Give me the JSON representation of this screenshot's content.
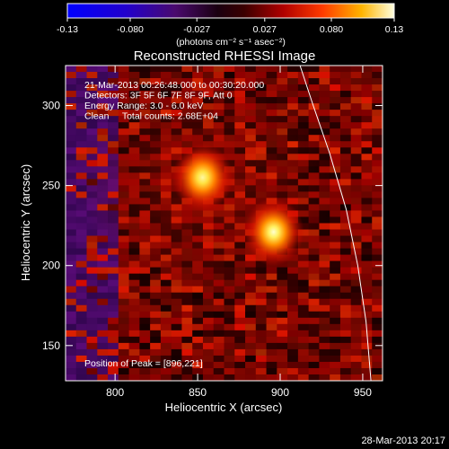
{
  "chart_data": {
    "type": "heatmap",
    "title": "Reconstructed RHESSI Image",
    "xlabel": "Heliocentric X (arcsec)",
    "ylabel": "Heliocentric Y (arcsec)",
    "xlim": [
      770,
      962
    ],
    "ylim": [
      128,
      325
    ],
    "x_ticks": [
      800,
      850,
      900,
      950
    ],
    "y_ticks": [
      150,
      200,
      250,
      300
    ],
    "colorbar": {
      "min": -0.13,
      "max": 0.13,
      "tick_values": [
        -0.13,
        -0.08,
        -0.027,
        0.027,
        0.08,
        0.13
      ],
      "tick_labels": [
        "-0.13",
        "-0.080",
        "-0.027",
        "0.027",
        "0.080",
        "0.13"
      ],
      "unit_label": "(photons cm⁻² s⁻¹ asec⁻²)"
    },
    "sources": [
      {
        "x": 853,
        "y": 255,
        "peak": 0.11
      },
      {
        "x": 896,
        "y": 221,
        "peak": 0.13
      }
    ],
    "annotations": [
      "21-Mar-2013 00:26:48.000 to 00:30:20.000",
      "Detectors: 3F 5F 6F 7F 8F 9F, Att 0",
      "Energy Range: 3.0 - 6.0 keV",
      "Clean     Total counts: 2.68E+04"
    ],
    "peak_label": "Position of Peak = [896,221]",
    "grid": false
  },
  "footer": {
    "timestamp": "28-Mar-2013 20:17"
  }
}
